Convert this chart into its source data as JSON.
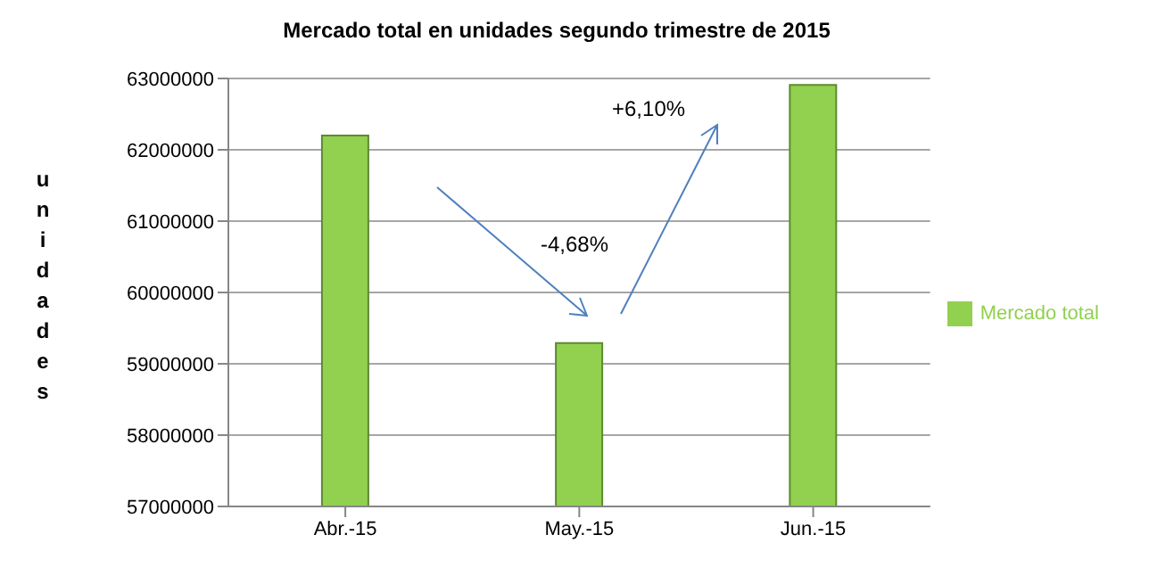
{
  "chart_data": {
    "type": "bar",
    "title": "Mercado total en unidades segundo trimestre de 2015",
    "ylabel": "unidades",
    "categories": [
      "Abr.-15",
      "May.-15",
      "Jun.-15"
    ],
    "series": [
      {
        "name": "Mercado total",
        "color": "#92d050",
        "values": [
          62200000,
          59290000,
          62910000
        ]
      }
    ],
    "ylim": [
      57000000,
      63000000
    ],
    "yticks": [
      57000000,
      58000000,
      59000000,
      60000000,
      61000000,
      62000000,
      63000000
    ],
    "grid": "y",
    "legend": "right",
    "annotations": [
      "-4,68%",
      "+6,10%"
    ]
  }
}
